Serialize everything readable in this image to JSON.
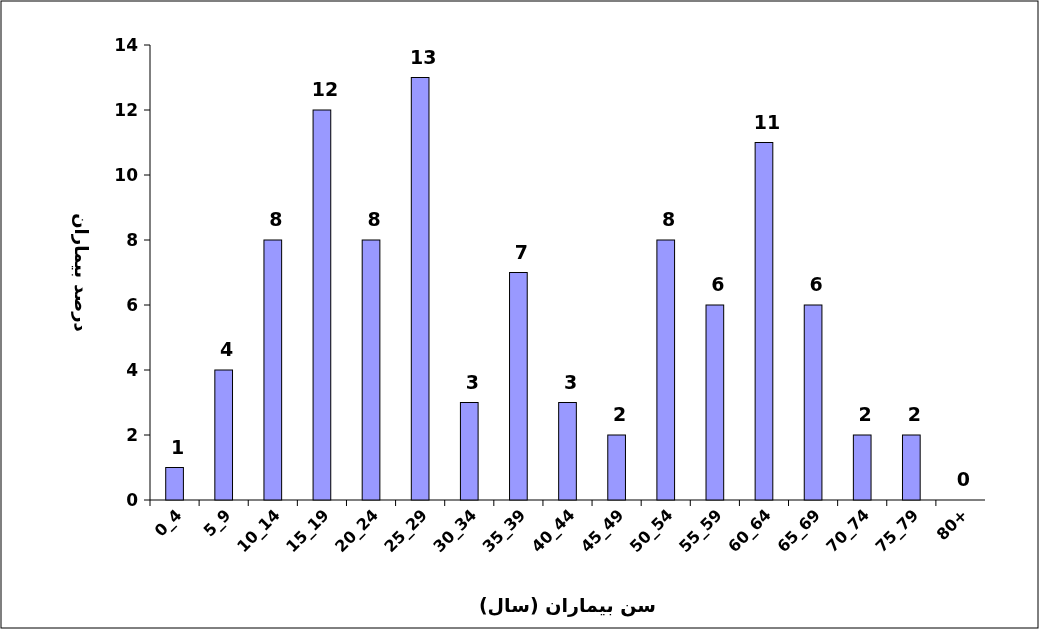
{
  "chart_data": {
    "type": "bar",
    "xlabel": "سن بیماران (سال)",
    "ylabel": "درصد بیماران",
    "categories": [
      "0_4",
      "5_9",
      "10_14",
      "15_19",
      "20_24",
      "25_29",
      "30_34",
      "35_39",
      "40_44",
      "45_49",
      "50_54",
      "55_59",
      "60_64",
      "65_69",
      "70_74",
      "75_79",
      "80+"
    ],
    "values": [
      1,
      4,
      8,
      12,
      8,
      13,
      3,
      7,
      3,
      2,
      8,
      6,
      11,
      6,
      2,
      2,
      0
    ],
    "color": "#9999ff",
    "ylim": [
      0,
      14
    ],
    "yticks": [
      0,
      2,
      4,
      6,
      8,
      10,
      12,
      14
    ],
    "data_labels": true
  }
}
